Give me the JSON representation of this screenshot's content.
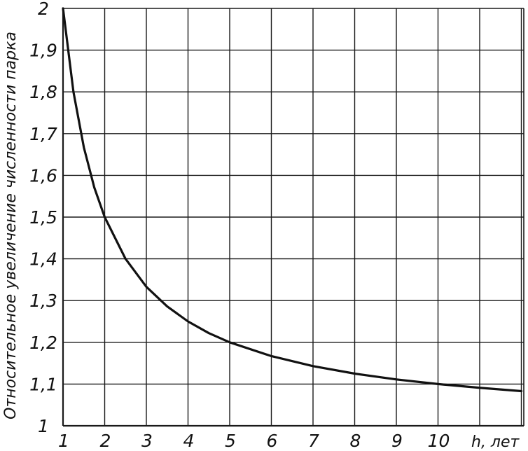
{
  "chart_data": {
    "type": "line",
    "title": "",
    "xlabel": "h, лет",
    "ylabel": "Относительное увеличение численности парка",
    "x_ticks": [
      "1",
      "2",
      "3",
      "4",
      "5",
      "6",
      "7",
      "8",
      "9",
      "10"
    ],
    "y_ticks": [
      "1",
      "1,1",
      "1,2",
      "1,3",
      "1,4",
      "1,5",
      "1,6",
      "1,7",
      "1,8",
      "1,9",
      "2"
    ],
    "xlim": [
      1,
      12
    ],
    "ylim": [
      1,
      2
    ],
    "grid": true,
    "series": [
      {
        "x": [
          1,
          1.25,
          1.5,
          1.75,
          2,
          2.5,
          3,
          3.5,
          4,
          4.5,
          5,
          6,
          7,
          8,
          9,
          10,
          11,
          12
        ],
        "y": [
          2.0,
          1.8,
          1.667,
          1.571,
          1.5,
          1.4,
          1.333,
          1.286,
          1.25,
          1.222,
          1.2,
          1.167,
          1.143,
          1.125,
          1.111,
          1.1,
          1.091,
          1.083
        ]
      }
    ],
    "colors": {
      "curve": "#111111",
      "grid": "#1a1a1a",
      "background": "#ffffff"
    }
  }
}
